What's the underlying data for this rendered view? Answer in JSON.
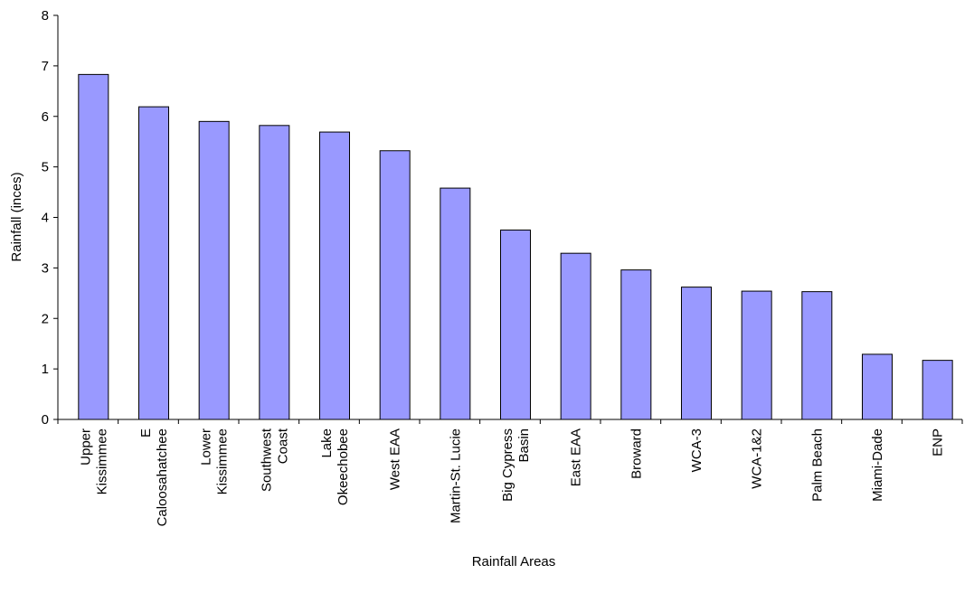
{
  "chart_data": {
    "type": "bar",
    "x_label": "Rainfall Areas",
    "y_label": "Rainfall (inces)",
    "categories": [
      "Upper\nKissimmee",
      "E\nCaloosahatchee",
      "Lower\nKissimmee",
      "Southwest\nCoast",
      "Lake\nOkeechobee",
      "West EAA",
      "Martin-St. Lucie",
      "Big Cypress\nBasin",
      "East EAA",
      "Broward",
      "WCA-3",
      "WCA-1&2",
      "Palm Beach",
      "Miami-Dade",
      "ENP"
    ],
    "values": [
      6.83,
      6.19,
      5.9,
      5.82,
      5.69,
      5.32,
      4.58,
      3.75,
      3.29,
      2.96,
      2.62,
      2.54,
      2.53,
      1.29,
      1.17
    ],
    "color": "#9999ff",
    "ylim": [
      0,
      8
    ],
    "yticks": [
      0,
      1,
      2,
      3,
      4,
      5,
      6,
      7,
      8
    ],
    "grid": false
  }
}
